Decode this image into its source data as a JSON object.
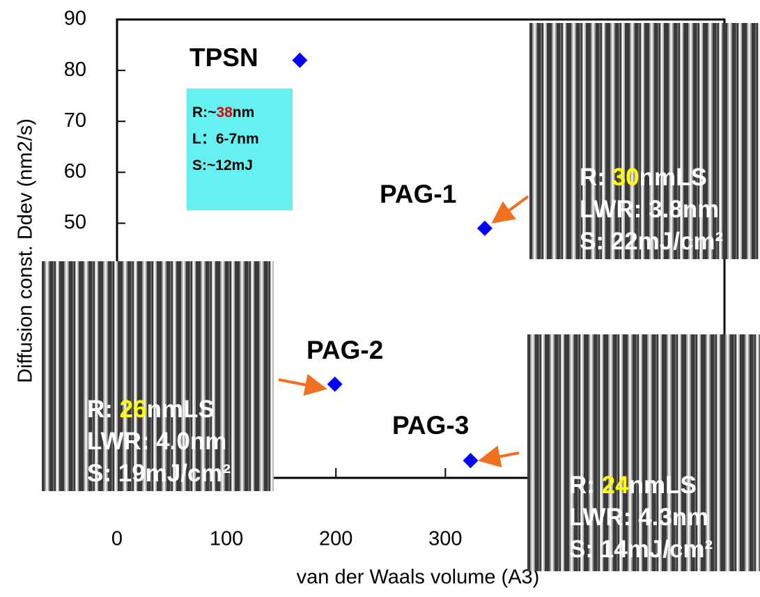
{
  "chart_data": {
    "type": "scatter",
    "x_label": "van der Waals volume (A3)",
    "y_label": "Diffusion const. Ddev (nm2/s)",
    "xlim": [
      0,
      555
    ],
    "ylim": [
      0,
      90
    ],
    "xticks": [
      0,
      100,
      200,
      300
    ],
    "yticks": [
      50,
      60,
      70,
      80,
      90
    ],
    "color": "#0000ff",
    "labels": [
      "TPSN",
      "PAG-1",
      "PAG-2",
      "PAG-3"
    ],
    "x": [
      167,
      336,
      199,
      323
    ],
    "values": [
      82,
      49,
      18.4,
      3.4
    ],
    "note": {
      "lines": [
        [
          "R:~",
          "38",
          "nm"
        ],
        "L：6-7nm",
        "S:~12mJ"
      ]
    },
    "panels": [
      {
        "lines": [
          [
            "R: ",
            "30",
            "nmLS"
          ],
          "LWR: 3.8nm",
          "S: 22mJ/cm²"
        ]
      },
      {
        "lines": [
          [
            "R: ",
            "26",
            "nmLS"
          ],
          "LWR: 4.0nm",
          "S: 19mJ/cm²"
        ]
      },
      {
        "lines": [
          [
            "R: ",
            "24",
            "nmLS"
          ],
          "LWR: 4.3nm",
          "S: 14mJ/cm²"
        ]
      }
    ]
  }
}
